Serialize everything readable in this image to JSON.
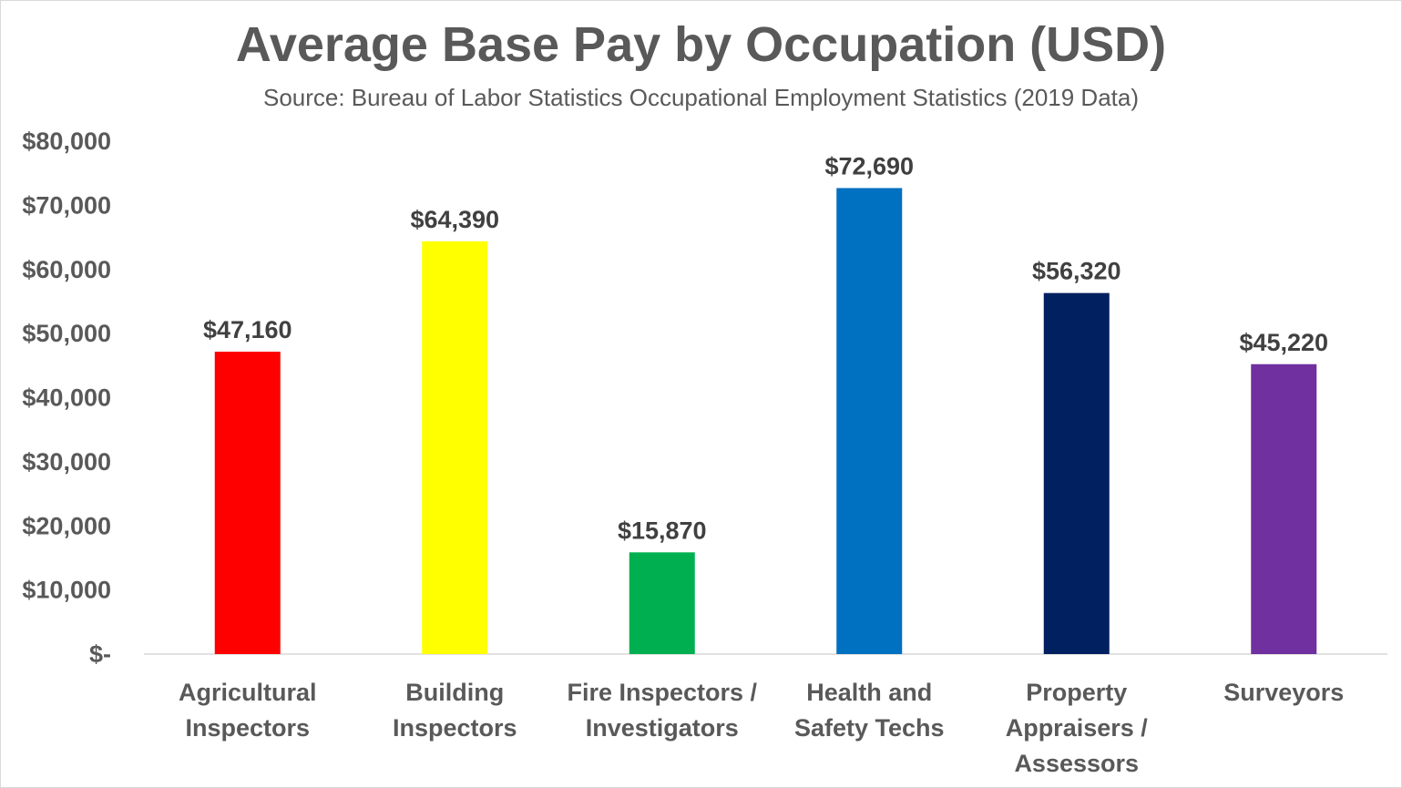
{
  "chart_data": {
    "type": "bar",
    "title": "Average Base Pay by Occupation (USD)",
    "subtitle": "Source: Bureau of Labor Statistics Occupational Employment Statistics (2019 Data)",
    "categories": [
      [
        "Agricultural",
        "Inspectors"
      ],
      [
        "Building",
        "Inspectors"
      ],
      [
        "Fire Inspectors /",
        "Investigators"
      ],
      [
        "Health and",
        "Safety Techs"
      ],
      [
        "Property",
        "Appraisers /",
        "Assessors"
      ],
      [
        "Surveyors"
      ]
    ],
    "values": [
      47160,
      64390,
      15870,
      72690,
      56320,
      45220
    ],
    "data_labels": [
      "$47,160",
      "$64,390",
      "$15,870",
      "$72,690",
      "$56,320",
      "$45,220"
    ],
    "bar_colors": [
      "#ff0000",
      "#ffff00",
      "#00b050",
      "#0070c0",
      "#002060",
      "#7030a0"
    ],
    "ylim": [
      0,
      80000
    ],
    "y_ticks": [
      0,
      10000,
      20000,
      30000,
      40000,
      50000,
      60000,
      70000,
      80000
    ],
    "y_tick_labels": [
      "$-",
      "$10,000",
      "$20,000",
      "$30,000",
      "$40,000",
      "$50,000",
      "$60,000",
      "$70,000",
      "$80,000"
    ],
    "xlabel": "",
    "ylabel": "",
    "grid": false,
    "legend": "none"
  }
}
